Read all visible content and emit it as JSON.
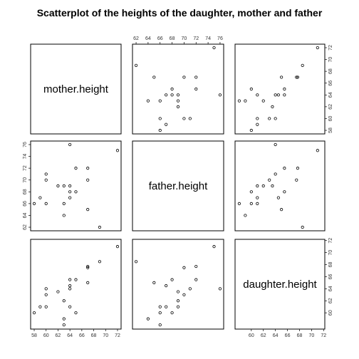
{
  "title": "Scatterplot of the heights of the daughter, mother and father",
  "chart_data": {
    "type": "scatter",
    "kind": "pairs-matrix",
    "variables": [
      {
        "name": "mother.height",
        "range": [
          57.4,
          72.6
        ],
        "ticks": [
          58,
          60,
          62,
          64,
          66,
          68,
          70,
          72
        ]
      },
      {
        "name": "father.height",
        "range": [
          61.4,
          76.6
        ],
        "ticks": [
          62,
          64,
          66,
          68,
          70,
          72,
          74,
          76
        ]
      },
      {
        "name": "daughter.height",
        "range": [
          57.3,
          72.2
        ],
        "ticks": [
          60,
          62,
          64,
          66,
          68,
          70,
          72
        ]
      }
    ],
    "observations": [
      {
        "mother": 58,
        "father": 66,
        "daughter": 60
      },
      {
        "mother": 59,
        "father": 67,
        "daughter": 61
      },
      {
        "mother": 60,
        "father": 71,
        "daughter": 64
      },
      {
        "mother": 60,
        "father": 70,
        "daughter": 63
      },
      {
        "mother": 60,
        "father": 66,
        "daughter": 61
      },
      {
        "mother": 62,
        "father": 69,
        "daughter": 63.5
      },
      {
        "mother": 63,
        "father": 66,
        "daughter": 58
      },
      {
        "mother": 63,
        "father": 69,
        "daughter": 62
      },
      {
        "mother": 63,
        "father": 64,
        "daughter": 59
      },
      {
        "mother": 64,
        "father": 67,
        "daughter": 64.5
      },
      {
        "mother": 64,
        "father": 68,
        "daughter": 65.5
      },
      {
        "mother": 64,
        "father": 69,
        "daughter": 61
      },
      {
        "mother": 64,
        "father": 76,
        "daughter": 64
      },
      {
        "mother": 65,
        "father": 72,
        "daughter": 65.5
      },
      {
        "mother": 65,
        "father": 68,
        "daughter": 60
      },
      {
        "mother": 67,
        "father": 65,
        "daughter": 65
      },
      {
        "mother": 67,
        "father": 70,
        "daughter": 67.5
      },
      {
        "mother": 67,
        "father": 72,
        "daughter": 67.7
      },
      {
        "mother": 69,
        "father": 62,
        "daughter": 68.5
      },
      {
        "mother": 72,
        "father": 75,
        "daughter": 71
      }
    ],
    "grid": false,
    "legend": "none"
  }
}
